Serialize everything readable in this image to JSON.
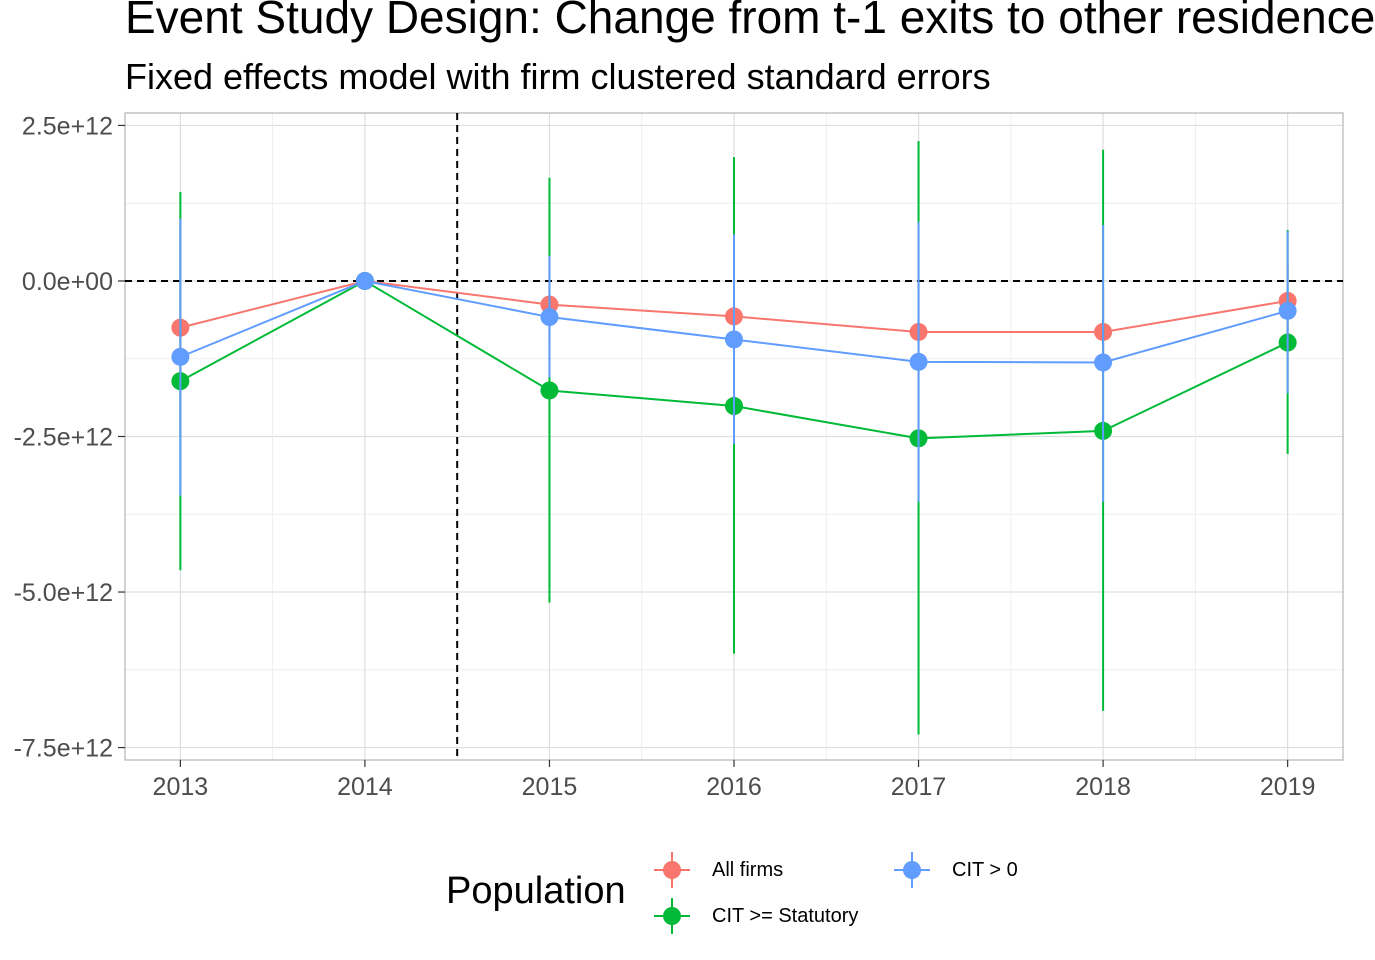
{
  "chart_data": {
    "type": "line",
    "title": "Event Study Design: Change from t-1 exits to other residence",
    "subtitle": "Fixed effects model with firm clustered standard errors",
    "xlabel": "",
    "ylabel": "",
    "categories": [
      "2013",
      "2014",
      "2015",
      "2016",
      "2017",
      "2018",
      "2019"
    ],
    "x": [
      2013,
      2014,
      2015,
      2016,
      2017,
      2018,
      2019
    ],
    "xlim": [
      2012.7,
      2019.3
    ],
    "ylim": [
      -7700000000000.0,
      2700000000000.0
    ],
    "y_ticks": [
      2500000000000.0,
      0,
      -2500000000000.0,
      -5000000000000.0,
      -7500000000000.0
    ],
    "y_tick_labels": [
      "2.5e+12",
      "0.0e+00",
      "-2.5e+12",
      "-5.0e+12",
      "-7.5e+12"
    ],
    "grid": true,
    "reference_lines": [
      {
        "axis": "y",
        "value": 0,
        "style": "dashed"
      },
      {
        "axis": "x",
        "value": 2014.5,
        "style": "dashed"
      }
    ],
    "legend": {
      "title": "Population",
      "position": "bottom"
    },
    "series": [
      {
        "name": "All firms",
        "color": "#F8766D",
        "values": [
          -750000000000.0,
          0,
          -380000000000.0,
          -570000000000.0,
          -820000000000.0,
          -820000000000.0,
          -320000000000.0
        ],
        "lower": [
          -2500000000000.0,
          0,
          -1000000000000.0,
          -1100000000000.0,
          -1600000000000.0,
          -1500000000000.0,
          -900000000000.0
        ],
        "upper": [
          1000000000000.0,
          0,
          250000000000.0,
          -50000000000.0,
          -50000000000.0,
          -100000000000.0,
          250000000000.0
        ]
      },
      {
        "name": "CIT >= Statutory",
        "color": "#00BA38",
        "values": [
          -1610000000000.0,
          0,
          -1760000000000.0,
          -2010000000000.0,
          -2530000000000.0,
          -2410000000000.0,
          -990000000000.0
        ],
        "lower": [
          -4650000000000.0,
          0,
          -5170000000000.0,
          -5990000000000.0,
          -7290000000000.0,
          -6910000000000.0,
          -2780000000000.0
        ],
        "upper": [
          1430000000000.0,
          0,
          1660000000000.0,
          1990000000000.0,
          2250000000000.0,
          2110000000000.0,
          820000000000.0
        ]
      },
      {
        "name": "CIT > 0",
        "color": "#619CFF",
        "values": [
          -1220000000000.0,
          0,
          -580000000000.0,
          -940000000000.0,
          -1300000000000.0,
          -1310000000000.0,
          -480000000000.0
        ],
        "lower": [
          -3450000000000.0,
          0,
          -1550000000000.0,
          -2620000000000.0,
          -3550000000000.0,
          -3550000000000.0,
          -1800000000000.0
        ],
        "upper": [
          1000000000000.0,
          0,
          400000000000.0,
          750000000000.0,
          950000000000.0,
          900000000000.0,
          800000000000.0
        ]
      }
    ]
  }
}
